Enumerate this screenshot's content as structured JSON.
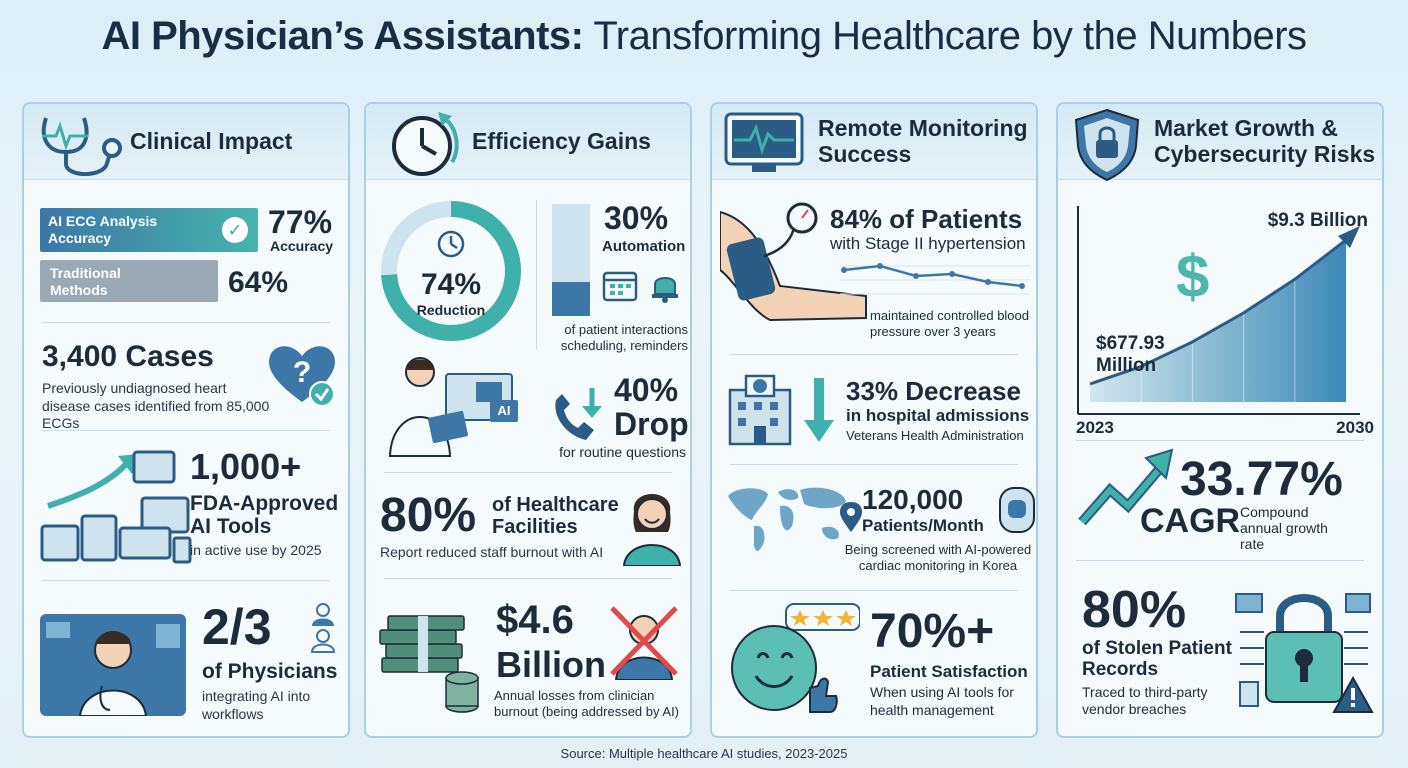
{
  "title": {
    "bold": "AI Physician’s Assistants:",
    "light": "Transforming Healthcare by the Numbers"
  },
  "colors": {
    "teal": "#3fb0aa",
    "navy": "#2b5c86",
    "blue": "#3d77a8",
    "border": "#a9cfe0"
  },
  "panels": {
    "clinical": {
      "title": "Clinical Impact",
      "ecg_bar_label": "AI ECG Analysis Accuracy",
      "ecg_value": "77%",
      "ecg_sub": "Accuracy",
      "trad_bar_label": "Traditional Methods",
      "trad_value": "64%",
      "cases_value": "3,400 Cases",
      "cases_desc": "Previously undiagnosed heart disease cases identified from 85,000 ECGs",
      "fda_value": "1,000+",
      "fda_label": "FDA-Approved AI Tools",
      "fda_desc": "in active use by 2025",
      "phys_value": "2/3",
      "phys_label": "of Physicians",
      "phys_desc": "integrating AI into workflows"
    },
    "efficiency": {
      "title": "Efficiency Gains",
      "donut_value": "74%",
      "donut_label": "Reduction",
      "donut_fraction": 0.74,
      "auto_value": "30%",
      "auto_label": "Automation",
      "auto_desc": "of patient interactions scheduling, reminders",
      "auto_fraction": 0.3,
      "ai_badge": "AI",
      "drop_value": "40%",
      "drop_word": "Drop",
      "drop_desc": "for routine questions",
      "facilities_value": "80%",
      "facilities_label": "of Healthcare Facilities",
      "facilities_desc": "Report reduced staff burnout with AI",
      "losses_value": "$4.6",
      "losses_word": "Billion",
      "losses_desc": "Annual losses from clinician burnout (being addressed by AI)"
    },
    "remote": {
      "title_line1": "Remote Monitoring",
      "title_line2": "Success",
      "patients_value": "84% of Patients",
      "patients_label": "with Stage II hypertension",
      "patients_desc": "maintained controlled blood pressure over 3 years",
      "admissions_value": "33% Decrease",
      "admissions_label": "in hospital admissions",
      "admissions_desc": "Veterans Health Administration",
      "month_value": "120,000",
      "month_label": "Patients/Month",
      "month_desc": "Being screened with AI-powered cardiac monitoring in Korea",
      "satisfaction_value": "70%+",
      "satisfaction_label": "Patient Satisfaction",
      "satisfaction_desc": "When using AI tools for health management"
    },
    "market": {
      "title_line1": "Market Growth &",
      "title_line2": "Cybersecurity Risks",
      "dollar_sign": "$",
      "cagr_value": "33.77%",
      "cagr_word": "CAGR",
      "cagr_desc": "Compound annual growth rate",
      "stolen_value": "80%",
      "stolen_label": "of Stolen Patient Records",
      "stolen_desc": "Traced to third-party vendor breaches"
    }
  },
  "chart_data": {
    "type": "area",
    "x": [
      2023,
      2030
    ],
    "y": [
      677.93,
      9300
    ],
    "labels": [
      "$677.93 Million",
      "$9.3 Billion"
    ],
    "xticks": [
      "2023",
      "2030"
    ]
  },
  "footer": "Source: Multiple healthcare AI studies, 2023-2025"
}
